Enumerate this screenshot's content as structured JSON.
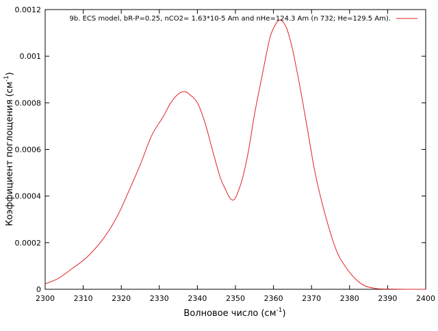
{
  "chart_data": {
    "type": "line",
    "title": "",
    "xlabel": "Волновое число (см",
    "xlabel_sup": "-1",
    "xlabel_close": ")",
    "ylabel": "Коэффициент поглощения (см",
    "ylabel_sup": "-1",
    "ylabel_close": ")",
    "xlim": [
      2300,
      2400
    ],
    "ylim": [
      0,
      0.0012
    ],
    "grid": false,
    "legend_position": "top-right",
    "x_ticks": [
      2300,
      2310,
      2320,
      2330,
      2340,
      2350,
      2360,
      2370,
      2380,
      2390,
      2400
    ],
    "x_tick_labels": [
      "2300",
      "2310",
      "2320",
      "2330",
      "2340",
      "2350",
      "2360",
      "2370",
      "2380",
      "2390",
      "2400"
    ],
    "y_ticks": [
      0,
      0.0002,
      0.0004,
      0.0006,
      0.0008,
      0.001,
      0.0012
    ],
    "y_tick_labels": [
      "0",
      "0.0002",
      "0.0004",
      "0.0006",
      "0.0008",
      "0.001",
      "0.0012"
    ],
    "series": [
      {
        "name": "9b. ECS model, bR-P=0.25, nCO2= 1.63*10-5 Am and nHe=124.3 Am (n  732; He=129.5 Am).",
        "color": "#e02020",
        "x": [
          2300,
          2303.5,
          2307,
          2311,
          2315.5,
          2319,
          2322,
          2325,
          2328,
          2331,
          2333,
          2335,
          2336.6,
          2338,
          2340,
          2342,
          2344,
          2346,
          2347.5,
          2348.5,
          2349.5,
          2350.5,
          2352,
          2353.5,
          2355,
          2357,
          2359,
          2360.5,
          2361.5,
          2362.3,
          2363.5,
          2365,
          2367,
          2369,
          2371,
          2373.5,
          2376.5,
          2379,
          2381.5,
          2384,
          2387,
          2390,
          2395,
          2400
        ],
        "y": [
          2.3e-05,
          4.7e-05,
          8.8e-05,
          0.000138,
          0.000222,
          0.000315,
          0.000422,
          0.000535,
          0.00066,
          0.00074,
          0.0008,
          0.000838,
          0.000848,
          0.000835,
          0.0008,
          0.000715,
          0.000595,
          0.00048,
          0.000425,
          0.000393,
          0.000383,
          0.00041,
          0.000485,
          0.0006,
          0.00075,
          0.000915,
          0.001075,
          0.001135,
          0.001155,
          0.00115,
          0.001118,
          0.00103,
          0.000865,
          0.00068,
          0.000495,
          0.000325,
          0.000168,
          9.5e-05,
          4.5e-05,
          1.5e-05,
          3e-06,
          1e-06,
          0,
          0
        ]
      }
    ]
  }
}
